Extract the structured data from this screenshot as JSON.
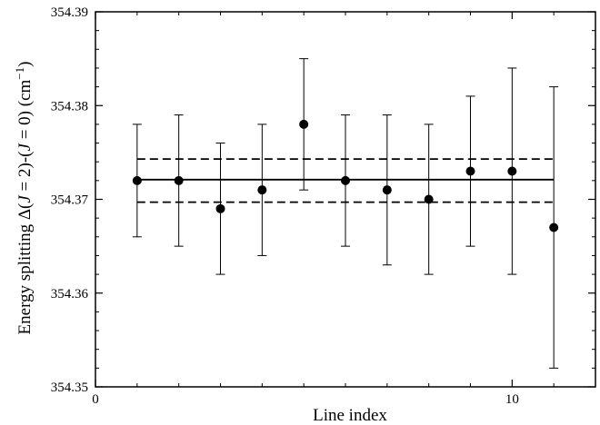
{
  "chart_data": {
    "type": "scatter",
    "title": "",
    "xlabel": "Line index",
    "ylabel": {
      "prefix": "Energy splitting  Δ(",
      "j": "J",
      "eq2": " = 2)-(",
      "eq0": " = 0) (cm",
      "sup": "−1",
      "close": ")"
    },
    "xlim": [
      0,
      12
    ],
    "ylim": [
      354.35,
      354.39
    ],
    "x_ticks": [
      0,
      10
    ],
    "x_tick_labels": [
      "0",
      "10"
    ],
    "x_minor_ticks": [
      1,
      2,
      3,
      4,
      5,
      6,
      7,
      8,
      9,
      11
    ],
    "y_ticks": [
      354.35,
      354.36,
      354.37,
      354.38,
      354.39
    ],
    "y_tick_labels": [
      "354.35",
      "354.36",
      "354.37",
      "354.38",
      "354.39"
    ],
    "y_minor_step": 0.002,
    "grid": false,
    "series": [
      {
        "x": [
          1,
          2,
          3,
          4,
          5,
          6,
          7,
          8,
          9,
          10,
          11
        ],
        "y": [
          354.372,
          354.372,
          354.369,
          354.371,
          354.378,
          354.372,
          354.371,
          354.37,
          354.373,
          354.373,
          354.367
        ],
        "err_low": [
          354.366,
          354.365,
          354.362,
          354.364,
          354.371,
          354.365,
          354.363,
          354.362,
          354.365,
          354.362,
          354.352
        ],
        "err_high": [
          354.378,
          354.379,
          354.376,
          354.378,
          354.385,
          354.379,
          354.379,
          354.378,
          354.381,
          354.384,
          354.382
        ]
      }
    ],
    "mean_line": {
      "value": 354.3721,
      "x_range": [
        1,
        11
      ],
      "style": "solid"
    },
    "band_lines": [
      {
        "value": 354.3743,
        "x_range": [
          1,
          11
        ],
        "style": "dashed"
      },
      {
        "value": 354.3697,
        "x_range": [
          1,
          11
        ],
        "style": "dashed"
      }
    ],
    "colors": {
      "marker": "#000000",
      "line": "#000000"
    }
  }
}
